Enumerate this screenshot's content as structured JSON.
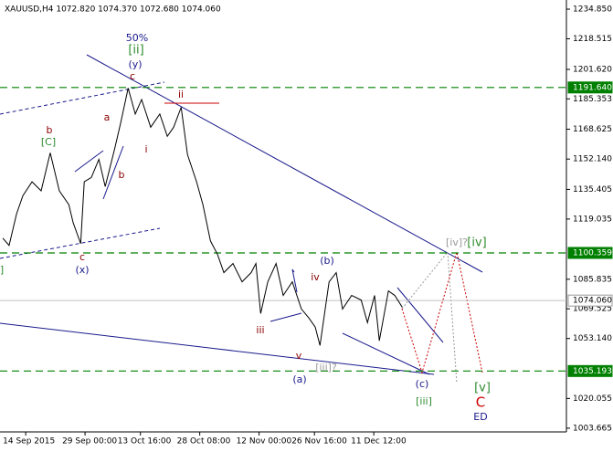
{
  "chart_data": {
    "type": "line",
    "title": "XAUUSD,H4  1072.820 1074.370 1072.680 1074.060",
    "x": [
      -5.8,
      -4.2,
      -2.3,
      -0.7,
      1.6,
      3.9,
      6.2,
      8.5,
      10.9,
      12,
      13.9,
      14.8,
      16.6,
      18.5,
      20.1,
      22.4,
      24,
      25.9,
      27.7,
      29.3,
      31.6,
      33.9,
      35.8,
      37.4,
      39.3,
      40.9,
      43.2,
      44.8,
      46.7,
      48.5,
      50.1,
      52.4,
      54.7,
      57,
      58.2,
      59.4,
      61.2,
      63.3,
      65.1,
      67.4,
      69.7,
      71.6,
      73.2,
      74.4,
      76.7,
      78.5,
      80.1,
      82.4,
      84.8,
      86.4,
      88.2,
      89.4,
      91.7,
      93.3,
      95.2
    ],
    "series": [
      {
        "name": "XAUUSD",
        "color": "#000000",
        "values": [
          1108.5,
          1104.5,
          1122,
          1132,
          1139.6,
          1134.6,
          1155.6,
          1134.6,
          1127,
          1117,
          1105.5,
          1139.6,
          1142,
          1152,
          1137,
          1157,
          1172,
          1191.3,
          1177,
          1185,
          1169.7,
          1177,
          1164.7,
          1169.7,
          1180.7,
          1154.6,
          1139.6,
          1127,
          1107,
          1099.5,
          1089.5,
          1094.5,
          1084.4,
          1089.5,
          1094.5,
          1066.9,
          1084.4,
          1094.5,
          1076.9,
          1084.4,
          1069.4,
          1064.4,
          1059.4,
          1049.3,
          1084.4,
          1089.5,
          1069.4,
          1076.9,
          1074.4,
          1061.9,
          1076.9,
          1051.9,
          1079.4,
          1076.9,
          1070.4
        ]
      }
    ],
    "xlim": [
      -6.5,
      136.7
    ],
    "ylim": [
      1001.6,
      1239.9
    ],
    "xticks": [
      {
        "value": 0,
        "label": "14 Sep 2015"
      },
      {
        "value": 15,
        "label": "29 Sep 00:00"
      },
      {
        "value": 29,
        "label": "13 Oct 16:00"
      },
      {
        "value": 44,
        "label": "28 Oct 08:00"
      },
      {
        "value": 59,
        "label": "12 Nov 00:00"
      },
      {
        "value": 73,
        "label": "26 Nov 16:00"
      },
      {
        "value": 88,
        "label": "11 Dec 12:00"
      }
    ],
    "yticks": [
      {
        "value": 1234.85,
        "label": "1234.850"
      },
      {
        "value": 1218.515,
        "label": "1218.515"
      },
      {
        "value": 1201.62,
        "label": "1201.620"
      },
      {
        "value": 1185.353,
        "label": "1185.353"
      },
      {
        "value": 1168.625,
        "label": "1168.625"
      },
      {
        "value": 1152.14,
        "label": "1152.140"
      },
      {
        "value": 1135.405,
        "label": "1135.405"
      },
      {
        "value": 1119.035,
        "label": "1119.035"
      },
      {
        "value": 1085.835,
        "label": "1085.835"
      },
      {
        "value": 1069.525,
        "label": "1069.525"
      },
      {
        "value": 1053.14,
        "label": "1053.140"
      },
      {
        "value": 1020.055,
        "label": "1020.055"
      },
      {
        "value": 1003.665,
        "label": "1003.665"
      }
    ],
    "levels": [
      {
        "value": 1191.64,
        "label": "1191.640",
        "color": "#008000"
      },
      {
        "value": 1100.359,
        "label": "1100.359",
        "color": "#008000"
      },
      {
        "value": 1074.06,
        "label": "1074.060",
        "color": "#c0c0c0"
      },
      {
        "value": 1035.193,
        "label": "1035.193",
        "color": "#008000"
      }
    ],
    "annotations": [
      {
        "text": "50%",
        "color": "#1a1a8c"
      },
      {
        "text": "[ii]",
        "color": "#2e8b2e"
      },
      {
        "text": "(y)",
        "color": "#1a1a8c"
      },
      {
        "text": "c",
        "color": "#8b0000"
      },
      {
        "text": "a",
        "color": "#8b0000"
      },
      {
        "text": "b",
        "color": "#8b0000"
      },
      {
        "text": "[C]",
        "color": "#2e8b2e"
      },
      {
        "text": "b",
        "color": "#8b0000"
      },
      {
        "text": "i",
        "color": "#8b0000"
      },
      {
        "text": "ii",
        "color": "#8b0000"
      },
      {
        "text": "c",
        "color": "#8b0000"
      },
      {
        "text": "(x)",
        "color": "#1a1a8c"
      },
      {
        "text": "iv",
        "color": "#8b0000"
      },
      {
        "text": "(b)",
        "color": "#1a1a8c"
      },
      {
        "text": "iii",
        "color": "#8b0000"
      },
      {
        "text": "v",
        "color": "#8b0000"
      },
      {
        "text": "(a)",
        "color": "#1a1a8c"
      },
      {
        "text": "[iii]?",
        "color": "#999999"
      },
      {
        "text": "[iv]?",
        "color": "#999999"
      },
      {
        "text": "[iv]",
        "color": "#2e8b2e"
      },
      {
        "text": "(c)",
        "color": "#1a1a8c"
      },
      {
        "text": "[iii]",
        "color": "#2e8b2e"
      },
      {
        "text": "[v]",
        "color": "#2e8b2e"
      },
      {
        "text": "C",
        "color": "#cc0000"
      },
      {
        "text": "ED",
        "color": "#1a1a8c"
      },
      {
        "text": "]",
        "color": "#2e8b2e"
      }
    ]
  }
}
